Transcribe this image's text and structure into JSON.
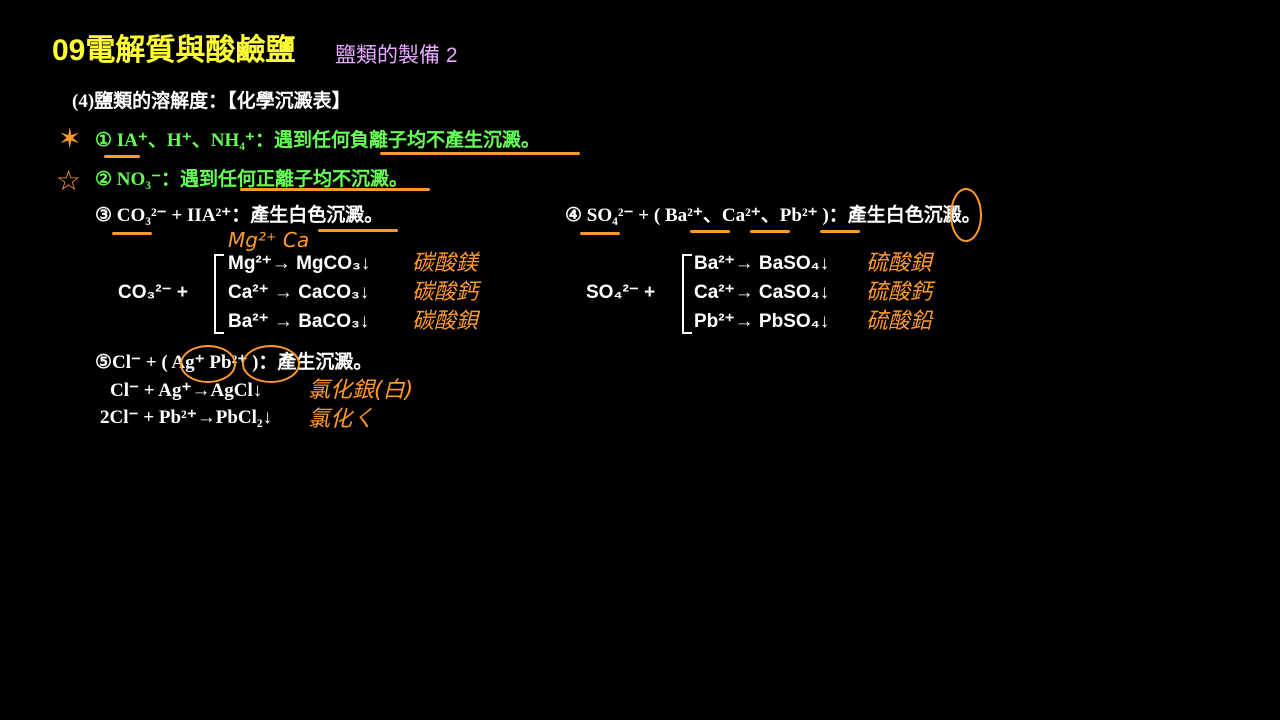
{
  "header": {
    "title": "09電解質與酸鹼鹽",
    "subtitle": "鹽類的製備 2"
  },
  "section": {
    "heading": "(4)鹽類的溶解度：【化學沉澱表】"
  },
  "rules": [
    {
      "text": "① IA⁺、H⁺、NH₄⁺：遇到任何負離子均不產生沉澱。"
    },
    {
      "text": "② NO₃⁻：遇到任何正離子均不沉澱。"
    },
    {
      "text": "③ CO₃²⁻ + IIA²⁺：產生白色沉澱。"
    },
    {
      "text": "④ SO₄²⁻ + ( Ba²⁺、Ca²⁺、Pb²⁺ )：產生白色沉澱。"
    },
    {
      "text": "⑤Cl⁻ + ( Ag⁺  Pb²⁺ )：產生沉澱。"
    }
  ],
  "carbonate": {
    "lhs": "CO₃²⁻ +",
    "rows": [
      "Mg²⁺→ MgCO₃↓",
      "Ca²⁺ → CaCO₃↓",
      "Ba²⁺ → BaCO₃↓"
    ]
  },
  "sulfate": {
    "lhs": "SO₄²⁻ +",
    "rows": [
      "Ba²⁺→ BaSO₄↓",
      "Ca²⁺→ CaSO₄↓",
      "Pb²⁺→ PbSO₄↓"
    ]
  },
  "chloride": {
    "rows": [
      "Cl⁻ + Ag⁺→AgCl↓",
      "2Cl⁻ + Pb²⁺→PbCl₂↓"
    ]
  },
  "annotations": {
    "ions": "Mg²⁺ Ca",
    "carbonate": [
      "碳酸鎂",
      "碳酸鈣",
      "碳酸鋇"
    ],
    "sulfate": [
      "硫酸鋇",
      "硫酸鈣",
      "硫酸鉛"
    ],
    "chloride": [
      "氯化銀(白)",
      "氯化ㄑ"
    ]
  },
  "colors": {
    "title": "#ffff33",
    "subtitle": "#e8a8ff",
    "rule": "#66ff55",
    "ink": "#ff9a2a"
  },
  "icons": [
    "star-icon",
    "star-icon"
  ]
}
